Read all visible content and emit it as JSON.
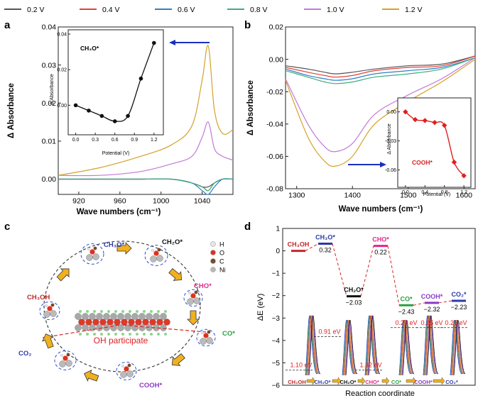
{
  "legend": [
    {
      "label": "0.2 V",
      "color": "#555555"
    },
    {
      "label": "0.4 V",
      "color": "#e0403a"
    },
    {
      "label": "0.6 V",
      "color": "#2f7fc8"
    },
    {
      "label": "0.8 V",
      "color": "#3cae7e"
    },
    {
      "label": "1.0 V",
      "color": "#c07ad8"
    },
    {
      "label": "1.2 V",
      "color": "#d4a12a"
    }
  ],
  "panel_a": {
    "letter": "a",
    "ylabel": "Δ Absorbance",
    "xlabel": "Wave numbers (cm⁻¹)",
    "yticks": [
      "0.00",
      "0.01",
      "0.02",
      "0.03",
      "0.04"
    ],
    "xticks": [
      "920",
      "960",
      "1000",
      "1040"
    ],
    "inset": {
      "label": "CH₃O*",
      "xlabel": "Potential (V)",
      "ylabel": "Δ Absorbance",
      "yticks": [
        "0.00",
        "0.02",
        "0.04"
      ],
      "xticks": [
        "0.0",
        "0.3",
        "0.6",
        "0.9",
        "1.2"
      ]
    }
  },
  "panel_b": {
    "letter": "b",
    "ylabel": "Δ Absorbance",
    "xlabel": "Wave numbers (cm⁻¹)",
    "yticks": [
      "0.02",
      "0.00",
      "-0.02",
      "-0.04",
      "-0.06",
      "-0.08"
    ],
    "xticks": [
      "1300",
      "1400",
      "1500",
      "1600"
    ],
    "inset": {
      "label": "COOH*",
      "xlabel": "Potential (V)",
      "ylabel": "Δ Absorbance",
      "yticks": [
        "0.00",
        "-0.03",
        "-0.06"
      ],
      "xticks": [
        "0.0",
        "0.4",
        "0.8",
        "1.2"
      ]
    }
  },
  "panel_c": {
    "letter": "c",
    "species": [
      "CH₃O*",
      "CH₂O*",
      "CHO*",
      "CO*",
      "COOH*",
      "CO₂",
      "CH₃OH"
    ],
    "legend_atoms": [
      {
        "label": "H",
        "color": "#e6e6e6"
      },
      {
        "label": "O",
        "color": "#e03020"
      },
      {
        "label": "C",
        "color": "#7a4a2a"
      },
      {
        "label": "Ni",
        "color": "#b8b8b8"
      }
    ],
    "oh_label": "OH participate"
  },
  "panel_d": {
    "letter": "d",
    "ylabel": "ΔE (eV)",
    "xlabel": "Reaction coordinate",
    "yticks": [
      "1",
      "0",
      "−1",
      "−2",
      "−3",
      "−4",
      "−5",
      "−6"
    ],
    "states": [
      {
        "label": "CH₃OH",
        "energy": 0,
        "value_label": "",
        "color": "#c0282a"
      },
      {
        "label": "CH₃O*",
        "energy": 0.32,
        "value_label": "0.32",
        "color": "#2a3aa8"
      },
      {
        "label": "CH₂O*",
        "energy": -2.03,
        "value_label": "−2.03",
        "color": "#111111"
      },
      {
        "label": "CHO*",
        "energy": 0.22,
        "value_label": "0.22",
        "color": "#e0288a"
      },
      {
        "label": "CO*",
        "energy": -2.43,
        "value_label": "−2.43",
        "color": "#2aa040"
      },
      {
        "label": "COOH*",
        "energy": -2.32,
        "value_label": "−2.32",
        "color": "#8a3ac8"
      },
      {
        "label": "CO₂*",
        "energy": -2.23,
        "value_label": "−2.23",
        "color": "#2a3aa8"
      }
    ],
    "barriers": [
      "1.10 eV",
      "0.91 eV",
      "1.32 eV",
      "0.27 eV",
      "0.25 eV",
      "0.21 eV"
    ],
    "axis_sequence": [
      "CH₃OH",
      "CH₃O*",
      "CH₂O*",
      "CHO*",
      "CO*",
      "COOH*",
      "CO₂*"
    ]
  },
  "chart_data": [
    {
      "type": "line",
      "title": "",
      "xlabel": "Wave numbers (cm⁻¹)",
      "ylabel": "Δ Absorbance",
      "xlim": [
        900,
        1070
      ],
      "ylim": [
        -0.004,
        0.04
      ],
      "x": [
        900,
        940,
        980,
        1010,
        1030,
        1040,
        1046,
        1052,
        1060,
        1070
      ],
      "series": [
        {
          "name": "0.2 V",
          "values": [
            0,
            0,
            0,
            0,
            -0.001,
            -0.002,
            -0.002,
            -0.001,
            0,
            0
          ]
        },
        {
          "name": "0.4 V",
          "values": [
            0,
            0,
            0,
            0,
            -0.001,
            -0.002,
            -0.003,
            -0.001,
            0,
            0
          ]
        },
        {
          "name": "0.6 V",
          "values": [
            0,
            0,
            0,
            0,
            -0.001,
            -0.003,
            -0.004,
            -0.002,
            0,
            0
          ]
        },
        {
          "name": "0.8 V",
          "values": [
            0,
            0,
            0,
            0,
            -0.001,
            -0.002,
            -0.003,
            -0.001,
            0,
            0
          ]
        },
        {
          "name": "1.0 V",
          "values": [
            0.001,
            0.001,
            0.002,
            0.004,
            0.006,
            0.011,
            0.015,
            0.008,
            0.006,
            0.005
          ]
        },
        {
          "name": "1.2 V",
          "values": [
            0.001,
            0.003,
            0.006,
            0.009,
            0.014,
            0.026,
            0.035,
            0.018,
            0.012,
            0.013
          ]
        }
      ]
    },
    {
      "type": "scatter",
      "title": "CH₃O*",
      "xlabel": "Potential (V)",
      "ylabel": "Δ Absorbance",
      "x": [
        0.0,
        0.2,
        0.4,
        0.6,
        0.8,
        1.0,
        1.2
      ],
      "values": [
        0.0,
        -0.003,
        -0.006,
        -0.009,
        -0.006,
        0.015,
        0.035
      ],
      "xlim": [
        -0.05,
        1.3
      ],
      "ylim": [
        -0.015,
        0.04
      ]
    },
    {
      "type": "line",
      "title": "",
      "xlabel": "Wave numbers (cm⁻¹)",
      "ylabel": "Δ Absorbance",
      "xlim": [
        1280,
        1620
      ],
      "ylim": [
        -0.08,
        0.02
      ],
      "x": [
        1280,
        1320,
        1350,
        1370,
        1400,
        1440,
        1500,
        1560,
        1620
      ],
      "series": [
        {
          "name": "0.2 V",
          "values": [
            -0.004,
            -0.006,
            -0.008,
            -0.009,
            -0.008,
            -0.006,
            -0.004,
            -0.003,
            0.002
          ]
        },
        {
          "name": "0.4 V",
          "values": [
            -0.005,
            -0.008,
            -0.01,
            -0.011,
            -0.01,
            -0.007,
            -0.005,
            -0.004,
            0.002
          ]
        },
        {
          "name": "0.6 V",
          "values": [
            -0.006,
            -0.01,
            -0.012,
            -0.013,
            -0.012,
            -0.009,
            -0.007,
            -0.005,
            0.001
          ]
        },
        {
          "name": "0.8 V",
          "values": [
            -0.007,
            -0.011,
            -0.014,
            -0.015,
            -0.014,
            -0.011,
            -0.009,
            -0.006,
            0.001
          ]
        },
        {
          "name": "1.0 V",
          "values": [
            -0.012,
            -0.04,
            -0.054,
            -0.057,
            -0.052,
            -0.034,
            -0.022,
            -0.012,
            0.001
          ]
        },
        {
          "name": "1.2 V",
          "values": [
            -0.013,
            -0.048,
            -0.063,
            -0.066,
            -0.06,
            -0.04,
            -0.026,
            -0.014,
            0.0
          ]
        }
      ]
    },
    {
      "type": "scatter",
      "title": "COOH*",
      "xlabel": "Potential (V)",
      "ylabel": "Δ Absorbance",
      "x": [
        0.0,
        0.2,
        0.4,
        0.6,
        0.8,
        1.0,
        1.2
      ],
      "values": [
        0.0,
        -0.008,
        -0.009,
        -0.011,
        -0.014,
        -0.052,
        -0.066
      ],
      "xlim": [
        -0.1,
        1.3
      ],
      "ylim": [
        -0.075,
        0.01
      ]
    }
  ]
}
